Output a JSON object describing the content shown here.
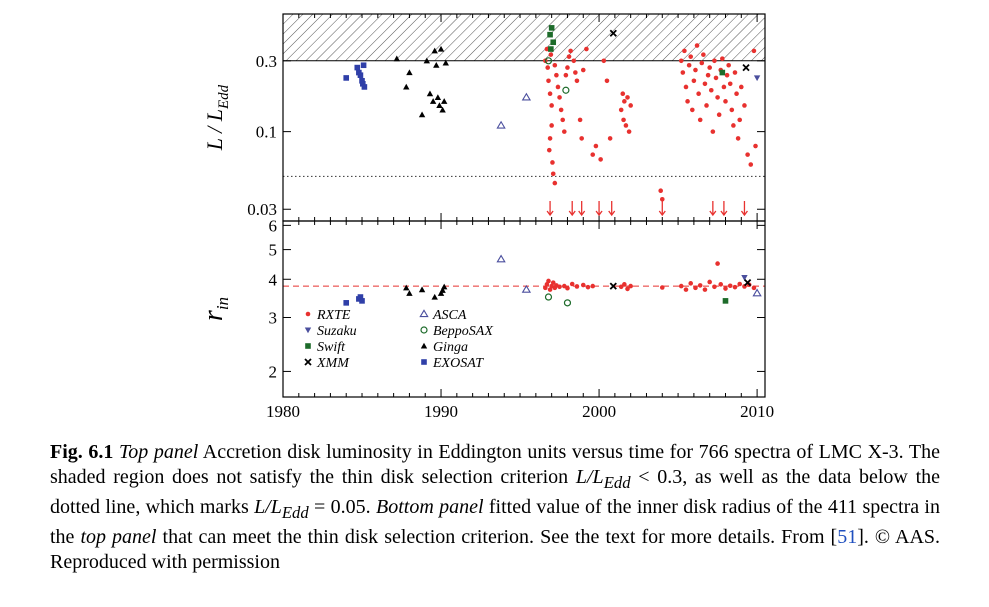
{
  "chart_data": [
    {
      "type": "scatter",
      "panel": "top",
      "ylabel": "L / L_Edd",
      "ylabel_main": "L / L",
      "ylabel_sub": "Edd",
      "yscale": "log",
      "ylim": [
        0.025,
        0.62
      ],
      "xlim": [
        1980,
        2010.5
      ],
      "yticks": [
        0.03,
        0.1,
        0.3
      ],
      "ytick_labels": [
        "0.03",
        "0.1",
        "0.3"
      ],
      "shaded_above": 0.3,
      "dotted_line": 0.05,
      "upper_limit_arrows_x": [
        1996.9,
        1998.3,
        1998.9,
        2000.0,
        2000.8,
        2004.0,
        2007.2,
        2007.9,
        2009.2
      ],
      "series": [
        {
          "name": "RXTE",
          "marker": "circle",
          "color": "#e8312f",
          "points": [
            [
              1996.6,
              0.3
            ],
            [
              1996.7,
              0.36
            ],
            [
              1996.75,
              0.27
            ],
            [
              1996.8,
              0.22
            ],
            [
              1996.9,
              0.18
            ],
            [
              1997.0,
              0.15
            ],
            [
              1997.0,
              0.11
            ],
            [
              1996.9,
              0.09
            ],
            [
              1996.85,
              0.075
            ],
            [
              1997.05,
              0.062
            ],
            [
              1997.1,
              0.052
            ],
            [
              1997.2,
              0.045
            ],
            [
              1996.95,
              0.33
            ],
            [
              1997.1,
              0.4
            ],
            [
              1997.2,
              0.28
            ],
            [
              1997.3,
              0.24
            ],
            [
              1997.4,
              0.2
            ],
            [
              1997.5,
              0.17
            ],
            [
              1997.6,
              0.14
            ],
            [
              1997.7,
              0.12
            ],
            [
              1997.8,
              0.1
            ],
            [
              1997.9,
              0.24
            ],
            [
              1998.0,
              0.27
            ],
            [
              1998.1,
              0.32
            ],
            [
              1998.2,
              0.35
            ],
            [
              1998.4,
              0.3
            ],
            [
              1998.5,
              0.25
            ],
            [
              1998.6,
              0.22
            ],
            [
              1998.8,
              0.12
            ],
            [
              1998.9,
              0.09
            ],
            [
              1999.0,
              0.26
            ],
            [
              1999.2,
              0.36
            ],
            [
              1999.6,
              0.07
            ],
            [
              1999.8,
              0.08
            ],
            [
              2000.1,
              0.065
            ],
            [
              2000.3,
              0.3
            ],
            [
              2000.5,
              0.22
            ],
            [
              2000.7,
              0.09
            ],
            [
              2001.4,
              0.14
            ],
            [
              2001.5,
              0.18
            ],
            [
              2001.55,
              0.12
            ],
            [
              2001.6,
              0.16
            ],
            [
              2001.7,
              0.11
            ],
            [
              2001.8,
              0.17
            ],
            [
              2001.9,
              0.1
            ],
            [
              2002.0,
              0.15
            ],
            [
              2003.9,
              0.04
            ],
            [
              2004.0,
              0.035
            ],
            [
              2005.2,
              0.3
            ],
            [
              2005.3,
              0.25
            ],
            [
              2005.4,
              0.35
            ],
            [
              2005.5,
              0.2
            ],
            [
              2005.6,
              0.16
            ],
            [
              2005.7,
              0.28
            ],
            [
              2005.8,
              0.32
            ],
            [
              2005.9,
              0.14
            ],
            [
              2006.0,
              0.22
            ],
            [
              2006.1,
              0.26
            ],
            [
              2006.2,
              0.38
            ],
            [
              2006.3,
              0.18
            ],
            [
              2006.4,
              0.12
            ],
            [
              2006.5,
              0.29
            ],
            [
              2006.6,
              0.33
            ],
            [
              2006.7,
              0.21
            ],
            [
              2006.8,
              0.15
            ],
            [
              2006.9,
              0.24
            ],
            [
              2007.0,
              0.27
            ],
            [
              2007.1,
              0.19
            ],
            [
              2007.2,
              0.1
            ],
            [
              2007.3,
              0.3
            ],
            [
              2007.4,
              0.23
            ],
            [
              2007.5,
              0.17
            ],
            [
              2007.6,
              0.13
            ],
            [
              2007.7,
              0.26
            ],
            [
              2007.8,
              0.31
            ],
            [
              2007.9,
              0.2
            ],
            [
              2008.0,
              0.16
            ],
            [
              2008.1,
              0.24
            ],
            [
              2008.2,
              0.28
            ],
            [
              2008.3,
              0.21
            ],
            [
              2008.4,
              0.14
            ],
            [
              2008.5,
              0.11
            ],
            [
              2008.6,
              0.25
            ],
            [
              2008.7,
              0.18
            ],
            [
              2008.8,
              0.09
            ],
            [
              2008.9,
              0.12
            ],
            [
              2009.0,
              0.2
            ],
            [
              2009.2,
              0.15
            ],
            [
              2009.4,
              0.07
            ],
            [
              2009.6,
              0.06
            ],
            [
              2009.8,
              0.35
            ],
            [
              2009.9,
              0.08
            ]
          ]
        },
        {
          "name": "Suzaku",
          "marker": "triangle-down",
          "color": "#4b4f9e",
          "points": [
            [
              2010.0,
              0.23
            ]
          ]
        },
        {
          "name": "Swift",
          "marker": "square",
          "color": "#1d6b2a",
          "points": [
            [
              1996.9,
              0.45
            ],
            [
              1997.0,
              0.5
            ],
            [
              1997.1,
              0.4
            ],
            [
              1996.95,
              0.36
            ],
            [
              2007.8,
              0.25
            ]
          ]
        },
        {
          "name": "XMM",
          "marker": "x",
          "color": "#000000",
          "points": [
            [
              2000.9,
              0.46
            ],
            [
              2009.3,
              0.27
            ]
          ]
        },
        {
          "name": "ASCA",
          "marker": "triangle-open",
          "color": "#4b4f9e",
          "points": [
            [
              1993.8,
              0.11
            ],
            [
              1995.4,
              0.17
            ]
          ]
        },
        {
          "name": "BeppoSAX",
          "marker": "circle-open",
          "color": "#1d6b2a",
          "points": [
            [
              1996.8,
              0.3
            ],
            [
              1997.9,
              0.19
            ]
          ]
        },
        {
          "name": "Ginga",
          "marker": "triangle",
          "color": "#000000",
          "points": [
            [
              1987.2,
              0.31
            ],
            [
              1987.8,
              0.2
            ],
            [
              1988.0,
              0.25
            ],
            [
              1988.8,
              0.13
            ],
            [
              1989.1,
              0.3
            ],
            [
              1989.3,
              0.18
            ],
            [
              1989.5,
              0.16
            ],
            [
              1989.6,
              0.35
            ],
            [
              1989.7,
              0.28
            ],
            [
              1989.8,
              0.17
            ],
            [
              1989.9,
              0.15
            ],
            [
              1990.0,
              0.36
            ],
            [
              1990.1,
              0.14
            ],
            [
              1990.2,
              0.16
            ],
            [
              1990.3,
              0.29
            ]
          ]
        },
        {
          "name": "EXOSAT",
          "marker": "square",
          "color": "#2f3fa8",
          "points": [
            [
              1984.0,
              0.23
            ],
            [
              1984.7,
              0.27
            ],
            [
              1984.8,
              0.25
            ],
            [
              1984.9,
              0.24
            ],
            [
              1985.0,
              0.22
            ],
            [
              1985.05,
              0.21
            ],
            [
              1985.1,
              0.28
            ],
            [
              1985.15,
              0.2
            ]
          ]
        }
      ]
    },
    {
      "type": "scatter",
      "panel": "bottom",
      "ylabel": "r_in",
      "ylabel_main": "r",
      "ylabel_sub": "in",
      "yscale": "log",
      "ylim": [
        1.65,
        6.2
      ],
      "xlim": [
        1980,
        2010.5
      ],
      "yticks": [
        2,
        3,
        4,
        5,
        6
      ],
      "ytick_labels": [
        "2",
        "3",
        "4",
        "5",
        "6"
      ],
      "xticks": [
        1980,
        1990,
        2000,
        2010
      ],
      "xtick_labels": [
        "1980",
        "1990",
        "2000",
        "2010"
      ],
      "reference_line": 3.8,
      "legend": {
        "placement": "lower-left",
        "columns": [
          [
            {
              "name": "RXTE",
              "marker": "circle",
              "color": "#e8312f"
            },
            {
              "name": "Suzaku",
              "marker": "triangle-down",
              "color": "#4b4f9e"
            },
            {
              "name": "Swift",
              "marker": "square",
              "color": "#1d6b2a"
            },
            {
              "name": "XMM",
              "marker": "x",
              "color": "#000000"
            }
          ],
          [
            {
              "name": "ASCA",
              "marker": "triangle-open",
              "color": "#4b4f9e"
            },
            {
              "name": "BeppoSAX",
              "marker": "circle-open",
              "color": "#1d6b2a"
            },
            {
              "name": "Ginga",
              "marker": "triangle",
              "color": "#000000"
            },
            {
              "name": "EXOSAT",
              "marker": "square",
              "color": "#2f3fa8"
            }
          ]
        ]
      },
      "series": [
        {
          "name": "RXTE",
          "marker": "circle",
          "color": "#e8312f",
          "points": [
            [
              1996.6,
              3.75
            ],
            [
              1996.7,
              3.85
            ],
            [
              1996.8,
              3.95
            ],
            [
              1996.9,
              3.7
            ],
            [
              1997.0,
              3.8
            ],
            [
              1997.1,
              3.9
            ],
            [
              1997.2,
              3.75
            ],
            [
              1997.3,
              3.82
            ],
            [
              1997.5,
              3.78
            ],
            [
              1997.8,
              3.8
            ],
            [
              1998.0,
              3.74
            ],
            [
              1998.3,
              3.86
            ],
            [
              1998.6,
              3.79
            ],
            [
              1999.0,
              3.83
            ],
            [
              1999.3,
              3.77
            ],
            [
              1999.6,
              3.8
            ],
            [
              2001.4,
              3.78
            ],
            [
              2001.6,
              3.85
            ],
            [
              2001.8,
              3.72
            ],
            [
              2002.0,
              3.8
            ],
            [
              2004.0,
              3.76
            ],
            [
              2005.2,
              3.8
            ],
            [
              2005.5,
              3.7
            ],
            [
              2005.8,
              3.88
            ],
            [
              2006.1,
              3.75
            ],
            [
              2006.4,
              3.82
            ],
            [
              2006.7,
              3.7
            ],
            [
              2007.0,
              3.92
            ],
            [
              2007.3,
              3.78
            ],
            [
              2007.5,
              4.5
            ],
            [
              2007.7,
              3.85
            ],
            [
              2008.0,
              3.73
            ],
            [
              2008.3,
              3.81
            ],
            [
              2008.6,
              3.77
            ],
            [
              2008.9,
              3.86
            ],
            [
              2009.2,
              3.79
            ],
            [
              2009.5,
              3.84
            ],
            [
              2009.8,
              3.75
            ]
          ]
        },
        {
          "name": "Suzaku",
          "marker": "triangle-down",
          "color": "#4b4f9e",
          "points": [
            [
              2009.2,
              4.05
            ]
          ]
        },
        {
          "name": "Swift",
          "marker": "square",
          "color": "#1d6b2a",
          "points": [
            [
              2008.0,
              3.4
            ]
          ]
        },
        {
          "name": "XMM",
          "marker": "x",
          "color": "#000000",
          "points": [
            [
              2000.9,
              3.8
            ],
            [
              2009.4,
              3.9
            ]
          ]
        },
        {
          "name": "ASCA",
          "marker": "triangle-open",
          "color": "#4b4f9e",
          "points": [
            [
              1993.8,
              4.65
            ],
            [
              1995.4,
              3.7
            ],
            [
              2010.0,
              3.6
            ]
          ]
        },
        {
          "name": "BeppoSAX",
          "marker": "circle-open",
          "color": "#1d6b2a",
          "points": [
            [
              1996.8,
              3.5
            ],
            [
              1998.0,
              3.35
            ]
          ]
        },
        {
          "name": "Ginga",
          "marker": "triangle",
          "color": "#000000",
          "points": [
            [
              1987.8,
              3.75
            ],
            [
              1988.0,
              3.6
            ],
            [
              1988.8,
              3.7
            ],
            [
              1989.6,
              3.5
            ],
            [
              1990.0,
              3.6
            ],
            [
              1990.1,
              3.68
            ],
            [
              1990.2,
              3.78
            ]
          ]
        },
        {
          "name": "EXOSAT",
          "marker": "square",
          "color": "#2f3fa8",
          "points": [
            [
              1984.0,
              3.35
            ],
            [
              1984.8,
              3.45
            ],
            [
              1984.9,
              3.5
            ],
            [
              1985.0,
              3.4
            ]
          ]
        }
      ]
    }
  ],
  "caption": {
    "label": "Fig. 6.1",
    "part1_emph": "Top panel",
    "part1": " Accretion disk luminosity in Eddington units versus time for 766 spectra of LMC X-3. The shaded region does not satisfy the thin disk selection criterion ",
    "criterion1": "L/L",
    "criterion1_sub": "Edd",
    "criterion1_rel": " < 0.3, as well as the data below the dotted line, which marks ",
    "criterion2": "L/L",
    "criterion2_sub": "Edd",
    "criterion2_rel": " = 0.05. ",
    "part2_emph": "Bottom panel",
    "part2": " fitted value of the inner disk radius of the 411 spectra in the ",
    "part2_emph2": "top panel",
    "part2_end": " that can meet the thin disk selection criterion. See the text for more details. From [",
    "ref": "51",
    "tail": "]. © AAS. Reproduced with permission"
  }
}
